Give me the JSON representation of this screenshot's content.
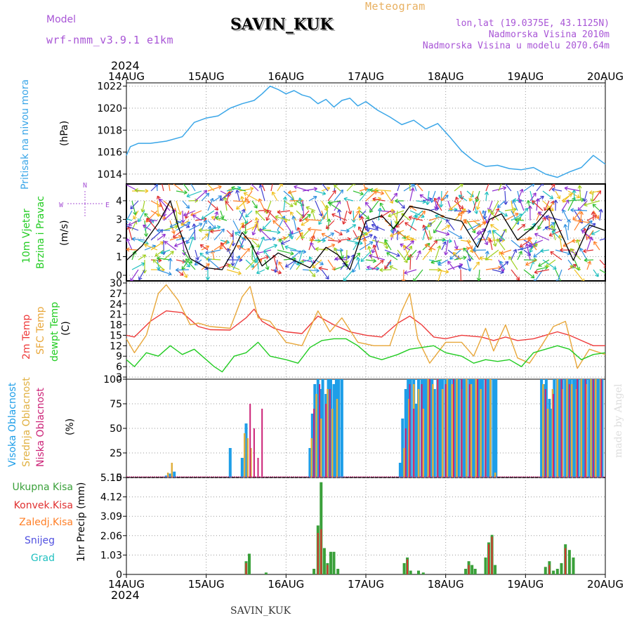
{
  "header": {
    "model_label": "Model",
    "model_name": "wrf-nmm_v3.9.1 e1km",
    "station": "SAVIN_KUK",
    "meteogram": "Meteogram",
    "lonlat": "lon,lat (19.0375E, 43.1125N)",
    "altitude": "Nadmorska Visina 2010m",
    "model_altitude": "Nadmorska Visina u modelu 2070.64m",
    "year": "2024",
    "footer_station": "SAVIN_KUK",
    "credit": "made by Angel"
  },
  "colors": {
    "pressure": "#3aa6e8",
    "temp2m": "#ee3b3b",
    "sfc": "#e8a73a",
    "dewpt": "#22cc22",
    "high_cloud": "#1e9ee8",
    "mid_cloud": "#e0b040",
    "low_cloud": "#cc2277",
    "total_precip": "#3aa03a",
    "conv_precip": "#e03030",
    "frz_precip": "#ff7f27",
    "snow": "#5050e0",
    "grad": "#20c0c0",
    "purple_text": "#a855d6"
  },
  "chart_data": [
    {
      "type": "line",
      "id": "pressure",
      "ylabel": "(hPa)",
      "side_labels": [
        "Pritisak na nivou mora"
      ],
      "x_ticks": [
        "14AUG",
        "15AUG",
        "16AUG",
        "17AUG",
        "18AUG",
        "19AUG",
        "20AUG"
      ],
      "y_ticks": [
        1014,
        1016,
        1018,
        1020,
        1022
      ],
      "ylim": [
        1013.1,
        1022.3
      ],
      "series": [
        {
          "x": [
            0,
            0.05,
            0.15,
            0.3,
            0.5,
            0.7,
            0.85,
            1.0,
            1.15,
            1.3,
            1.45,
            1.6,
            1.7,
            1.8,
            1.9,
            2.0,
            2.1,
            2.2,
            2.3,
            2.4,
            2.5,
            2.6,
            2.7,
            2.8,
            2.9,
            3.0,
            3.15,
            3.3,
            3.45,
            3.6,
            3.75,
            3.9,
            4.05,
            4.2,
            4.35,
            4.5,
            4.65,
            4.8,
            4.95,
            5.1,
            5.25,
            5.4,
            5.55,
            5.7,
            5.85,
            6.0
          ],
          "values": [
            1015.7,
            1016.5,
            1016.8,
            1016.8,
            1017.0,
            1017.4,
            1018.7,
            1019.1,
            1019.3,
            1020.0,
            1020.4,
            1020.7,
            1021.3,
            1022.0,
            1021.7,
            1021.3,
            1021.6,
            1021.2,
            1021.0,
            1020.4,
            1020.8,
            1020.1,
            1020.7,
            1020.9,
            1020.2,
            1020.6,
            1019.8,
            1019.2,
            1018.5,
            1018.9,
            1018.1,
            1018.6,
            1017.4,
            1016.1,
            1015.2,
            1014.7,
            1014.8,
            1014.5,
            1014.4,
            1014.6,
            1014.0,
            1013.7,
            1014.2,
            1014.6,
            1015.7,
            1014.9
          ]
        }
      ]
    },
    {
      "type": "line",
      "id": "wind",
      "ylabel": "(m/s)",
      "side_labels": [
        "10m Vjetar",
        "Brzina i Pravac"
      ],
      "direction_key": [
        "N",
        "W",
        "E"
      ],
      "y_ticks": [
        0,
        1,
        2,
        3,
        4
      ],
      "ylim": [
        -0.3,
        4.9
      ],
      "series": [
        {
          "x": [
            0,
            0.2,
            0.4,
            0.55,
            0.65,
            0.8,
            1.0,
            1.2,
            1.35,
            1.45,
            1.55,
            1.7,
            1.9,
            2.1,
            2.3,
            2.5,
            2.65,
            2.8,
            3.0,
            3.2,
            3.35,
            3.55,
            3.8,
            4.0,
            4.2,
            4.4,
            4.55,
            4.7,
            4.9,
            5.1,
            5.3,
            5.45,
            5.6,
            5.8,
            6.0
          ],
          "values": [
            0.8,
            1.6,
            2.8,
            4.0,
            2.6,
            0.9,
            0.4,
            0.3,
            1.4,
            2.3,
            1.8,
            0.5,
            1.2,
            0.8,
            0.4,
            1.5,
            1.1,
            0.3,
            2.9,
            3.2,
            2.5,
            3.7,
            3.5,
            3.1,
            2.9,
            1.5,
            3.0,
            3.3,
            1.9,
            2.6,
            3.6,
            2.2,
            0.8,
            2.7,
            2.4
          ]
        }
      ]
    },
    {
      "type": "line",
      "id": "temperature",
      "ylabel": "(C)",
      "side_labels": [
        "2m Temp",
        "SFC Temp",
        "dewpt Temp"
      ],
      "y_ticks": [
        3,
        6,
        9,
        12,
        15,
        18,
        21,
        24,
        27,
        30
      ],
      "ylim": [
        2.4,
        30.6
      ],
      "series": [
        {
          "name": "2m Temp",
          "x": [
            0,
            0.1,
            0.3,
            0.5,
            0.7,
            0.9,
            1.05,
            1.3,
            1.5,
            1.6,
            1.7,
            1.85,
            2.0,
            2.2,
            2.4,
            2.6,
            2.8,
            3.0,
            3.2,
            3.4,
            3.55,
            3.7,
            3.85,
            4.0,
            4.2,
            4.45,
            4.6,
            4.75,
            4.9,
            5.1,
            5.25,
            5.4,
            5.55,
            5.7,
            5.85,
            6.0
          ],
          "values": [
            15,
            14.5,
            19,
            22,
            21.5,
            17.5,
            16.6,
            16.5,
            20,
            22.5,
            19,
            17,
            16,
            15.5,
            20.5,
            18,
            16,
            15,
            14.5,
            18.5,
            20.5,
            18,
            14.5,
            14,
            15,
            14.5,
            13.5,
            14.5,
            13.5,
            14,
            15,
            16,
            15,
            13.5,
            12,
            12
          ]
        },
        {
          "name": "SFC Temp",
          "x": [
            0,
            0.1,
            0.25,
            0.4,
            0.5,
            0.65,
            0.8,
            0.9,
            1.05,
            1.3,
            1.45,
            1.55,
            1.65,
            1.8,
            2.0,
            2.2,
            2.4,
            2.55,
            2.7,
            2.9,
            3.1,
            3.3,
            3.45,
            3.55,
            3.65,
            3.8,
            4.0,
            4.2,
            4.35,
            4.5,
            4.6,
            4.75,
            4.9,
            5.05,
            5.2,
            5.35,
            5.5,
            5.65,
            5.8,
            6.0
          ],
          "values": [
            14,
            10,
            15,
            27,
            29.5,
            25,
            18,
            18.5,
            17.5,
            17,
            26,
            29,
            20,
            19,
            13,
            12,
            22,
            16,
            20,
            13,
            12,
            12,
            22,
            27,
            14,
            7,
            13,
            13,
            9,
            17,
            10.5,
            18,
            8.5,
            7,
            12,
            17.5,
            19,
            5.5,
            11,
            9.5
          ]
        },
        {
          "name": "dewpt Temp",
          "x": [
            0,
            0.1,
            0.25,
            0.4,
            0.55,
            0.7,
            0.85,
            1.0,
            1.1,
            1.2,
            1.35,
            1.5,
            1.65,
            1.8,
            2.0,
            2.15,
            2.3,
            2.45,
            2.6,
            2.75,
            2.9,
            3.05,
            3.2,
            3.4,
            3.55,
            3.7,
            3.85,
            4.0,
            4.2,
            4.35,
            4.5,
            4.65,
            4.8,
            4.95,
            5.1,
            5.25,
            5.4,
            5.55,
            5.7,
            5.85,
            6.0
          ],
          "values": [
            8,
            6,
            10,
            9,
            12,
            9.5,
            11,
            8,
            6,
            4.5,
            9,
            10,
            13,
            9,
            8,
            7,
            11.5,
            13.5,
            14,
            14,
            12,
            9,
            8,
            9.5,
            11,
            11.5,
            12,
            10,
            9,
            7,
            8,
            7.5,
            8,
            6,
            10,
            11,
            12,
            11,
            8,
            9.5,
            10
          ]
        }
      ]
    },
    {
      "type": "bar",
      "id": "cloud",
      "ylabel": "(%)",
      "side_labels": [
        "Visoka Oblacnost",
        "Srednja Oblacnost",
        "Niska Oblacnost"
      ],
      "y_ticks": [
        0,
        25,
        50,
        75,
        100
      ],
      "ylim": [
        0,
        100
      ],
      "series": [
        {
          "name": "Visoka Oblacnost",
          "x": [
            0.5,
            0.55,
            0.6,
            1.3,
            1.45,
            1.5,
            2.3,
            2.33,
            2.36,
            2.4,
            2.43,
            2.46,
            2.5,
            2.53,
            2.56,
            2.6,
            2.63,
            2.66,
            2.7,
            3.43,
            3.46,
            3.5,
            3.53,
            3.56,
            3.6,
            3.63,
            3.66,
            3.7,
            3.73,
            3.76,
            3.8,
            3.83,
            3.86,
            3.9,
            3.93,
            3.96,
            4.0,
            4.03,
            4.06,
            4.1,
            4.13,
            4.16,
            4.2,
            4.23,
            4.26,
            4.3,
            4.33,
            4.36,
            4.4,
            4.43,
            4.46,
            4.5,
            4.53,
            4.56,
            4.6,
            4.63,
            5.2,
            5.23,
            5.26,
            5.3,
            5.33,
            5.36,
            5.4,
            5.43,
            5.46,
            5.5,
            5.53,
            5.56,
            5.6,
            5.63,
            5.66,
            5.7,
            5.73,
            5.76,
            5.8,
            5.83,
            5.86,
            5.9,
            5.93,
            5.96
          ],
          "values": [
            2,
            4,
            6,
            30,
            20,
            55,
            30,
            65,
            95,
            100,
            90,
            100,
            85,
            100,
            100,
            95,
            100,
            100,
            100,
            15,
            60,
            90,
            100,
            100,
            100,
            75,
            100,
            100,
            100,
            100,
            100,
            100,
            90,
            100,
            100,
            100,
            100,
            100,
            100,
            100,
            100,
            100,
            100,
            100,
            100,
            100,
            100,
            100,
            100,
            100,
            100,
            100,
            100,
            100,
            100,
            100,
            100,
            95,
            100,
            80,
            70,
            100,
            100,
            100,
            100,
            100,
            100,
            100,
            100,
            100,
            100,
            100,
            100,
            100,
            100,
            100,
            100,
            100,
            100,
            100
          ]
        },
        {
          "name": "Srednja Oblacnost",
          "x": [
            0.52,
            0.57,
            1.48,
            1.52,
            1.56,
            2.32,
            2.38,
            2.44,
            2.52,
            2.58,
            2.64,
            3.48,
            3.54,
            3.6,
            3.66,
            3.72,
            3.78,
            3.84,
            3.9,
            3.96,
            4.02,
            4.08,
            4.14,
            4.2,
            4.26,
            4.32,
            4.38,
            4.44,
            4.5,
            4.56,
            4.62,
            5.22,
            5.28,
            5.34,
            5.4,
            5.46,
            5.52,
            5.58,
            5.64,
            5.7,
            5.76,
            5.82,
            5.88,
            5.94
          ],
          "values": [
            5,
            15,
            45,
            40,
            30,
            40,
            85,
            60,
            90,
            70,
            80,
            30,
            80,
            95,
            90,
            70,
            100,
            95,
            100,
            90,
            100,
            95,
            100,
            90,
            100,
            95,
            100,
            90,
            100,
            100,
            5,
            95,
            70,
            90,
            100,
            90,
            100,
            95,
            90,
            100,
            95,
            100,
            100,
            100
          ]
        },
        {
          "name": "Niska Oblacnost",
          "x": [
            1.55,
            1.6,
            1.65,
            1.7,
            2.35,
            2.42,
            2.5,
            2.55,
            3.5,
            3.55,
            3.6,
            3.7,
            3.8,
            3.9,
            4.0,
            4.1,
            4.2,
            4.3,
            4.4,
            4.5,
            5.25,
            5.35,
            5.45,
            5.55,
            5.65,
            5.75,
            5.85,
            5.95
          ],
          "values": [
            75,
            50,
            20,
            70,
            70,
            95,
            75,
            90,
            50,
            95,
            70,
            95,
            100,
            100,
            95,
            100,
            100,
            95,
            100,
            100,
            90,
            85,
            100,
            95,
            100,
            100,
            100,
            100
          ]
        }
      ]
    },
    {
      "type": "bar",
      "id": "precip",
      "ylabel": "1hr Precip (mm)",
      "side_labels": [
        "Ukupna Kisa",
        "Konvek.Kisa",
        "Zaledj.Kisa",
        "Snijeg",
        "Grad"
      ],
      "y_ticks": [
        "0",
        "1.03",
        "2.06",
        "3.09",
        "4.12",
        "5.15"
      ],
      "ylim": [
        0,
        5.15
      ],
      "series": [
        {
          "name": "Ukupna Kisa",
          "x": [
            1.5,
            1.54,
            1.75,
            2.35,
            2.4,
            2.44,
            2.48,
            2.52,
            2.56,
            2.6,
            2.65,
            3.48,
            3.52,
            3.56,
            3.66,
            3.72,
            4.25,
            4.29,
            4.33,
            4.37,
            4.5,
            4.54,
            4.58,
            4.62,
            5.25,
            5.3,
            5.35,
            5.4,
            5.45,
            5.5,
            5.55,
            5.6
          ],
          "values": [
            0.7,
            1.1,
            0.1,
            0.3,
            2.6,
            4.9,
            1.4,
            0.6,
            1.2,
            1.2,
            0.3,
            0.6,
            0.9,
            0.2,
            0.2,
            0.1,
            0.3,
            0.7,
            0.5,
            0.3,
            0.9,
            1.7,
            2.1,
            0.5,
            0.4,
            0.7,
            0.2,
            0.3,
            0.6,
            1.6,
            1.3,
            0.9
          ]
        },
        {
          "name": "Konvek.Kisa",
          "x": [
            1.5,
            2.4,
            2.44,
            2.52,
            3.52,
            4.29,
            4.54,
            4.58,
            5.3,
            5.5
          ],
          "values": [
            0.6,
            2.2,
            2.4,
            0.5,
            0.8,
            0.5,
            1.6,
            2.0,
            0.5,
            1.4
          ]
        }
      ]
    }
  ]
}
